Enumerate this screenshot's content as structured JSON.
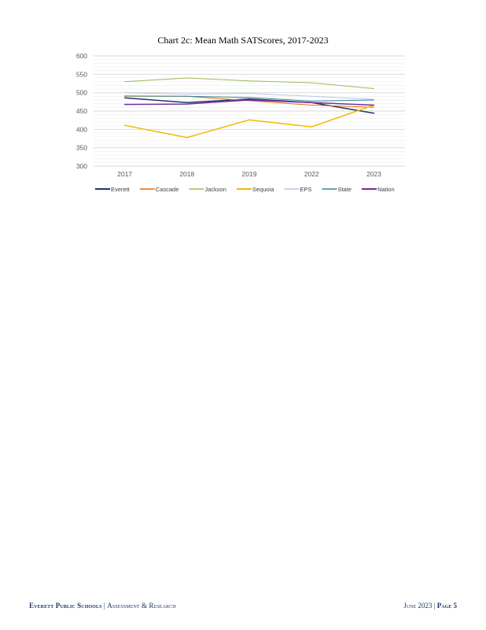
{
  "chart_data": {
    "type": "line",
    "title": "Chart 2c: Mean Math SATScores, 2017-2023",
    "xlabel": "",
    "ylabel": "",
    "categories": [
      "2017",
      "2018",
      "2019",
      "2022",
      "2023"
    ],
    "ylim": [
      300,
      600
    ],
    "yticks": [
      300,
      350,
      400,
      450,
      500,
      550,
      600
    ],
    "grid": true,
    "legend_position": "bottom",
    "series": [
      {
        "name": "Everett",
        "color": "#1f3864",
        "width": 1.5,
        "values": [
          486,
          473,
          483,
          473,
          444
        ]
      },
      {
        "name": "Cascade",
        "color": "#e36c09",
        "width": 1.0,
        "values": [
          490,
          490,
          478,
          466,
          460
        ]
      },
      {
        "name": "Jackson",
        "color": "#9bbb59",
        "width": 1.0,
        "values": [
          530,
          540,
          532,
          527,
          511
        ]
      },
      {
        "name": "Sequoia",
        "color": "#f5b800",
        "width": 1.5,
        "values": [
          411,
          378,
          426,
          407,
          466
        ]
      },
      {
        "name": "EPS",
        "color": "#b4c6e7",
        "width": 1.0,
        "values": [
          500,
          496,
          498,
          490,
          482
        ]
      },
      {
        "name": "State",
        "color": "#31859c",
        "width": 1.0,
        "values": [
          491,
          490,
          487,
          477,
          480
        ]
      },
      {
        "name": "Nation",
        "color": "#7030a0",
        "width": 1.5,
        "values": [
          468,
          469,
          480,
          473,
          466
        ]
      }
    ]
  },
  "footer": {
    "org": "Everett Public Schools",
    "separator": "|",
    "dept": "Assessment & Research",
    "date": "June 2023",
    "page_separator": "|",
    "page_label": "Page 5"
  }
}
